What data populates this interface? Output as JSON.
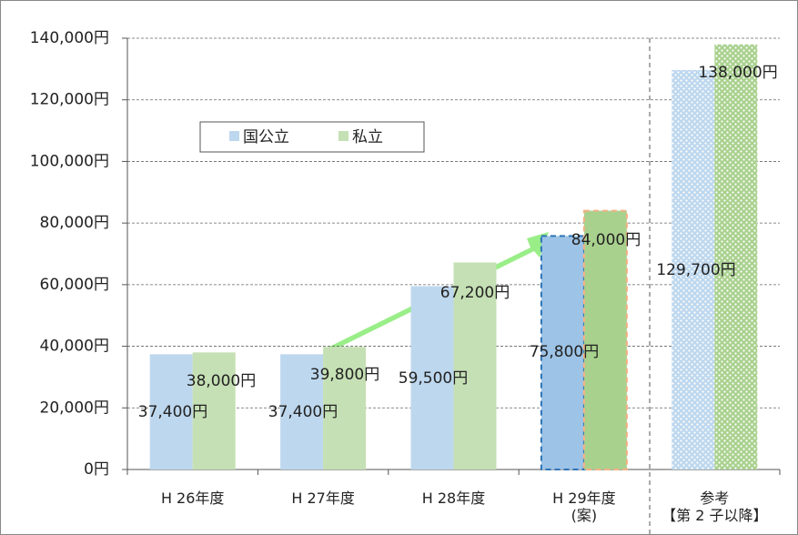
{
  "chart_data": {
    "type": "bar",
    "categories": [
      "H 26年度",
      "H 27年度",
      "H 28年度",
      "H 29年度\n(案)",
      "参考\n【第 2 子以降】"
    ],
    "series": [
      {
        "name": "国公立",
        "color": "#bdd7ee",
        "values": [
          37400,
          37400,
          59500,
          75800,
          129700
        ],
        "value_labels": [
          "37,400円",
          "37,400円",
          "59,500円",
          "75,800円",
          "129,700円"
        ]
      },
      {
        "name": "私立",
        "color": "#c5e0b4",
        "values": [
          38000,
          39800,
          67200,
          84000,
          138000
        ],
        "value_labels": [
          "38,000円",
          "39,800円",
          "67,200円",
          "84,000円",
          "138,000円"
        ]
      }
    ],
    "ylim": [
      0,
      140000
    ],
    "yticks": [
      {
        "value": 0,
        "label": "0円"
      },
      {
        "value": 20000,
        "label": "20,000円"
      },
      {
        "value": 40000,
        "label": "40,000円"
      },
      {
        "value": 60000,
        "label": "60,000円"
      },
      {
        "value": 80000,
        "label": "80,000円"
      },
      {
        "value": 100000,
        "label": "100,000円"
      },
      {
        "value": 120000,
        "label": "120,000円"
      },
      {
        "value": 140000,
        "label": "140,000円"
      }
    ],
    "grid": true
  }
}
